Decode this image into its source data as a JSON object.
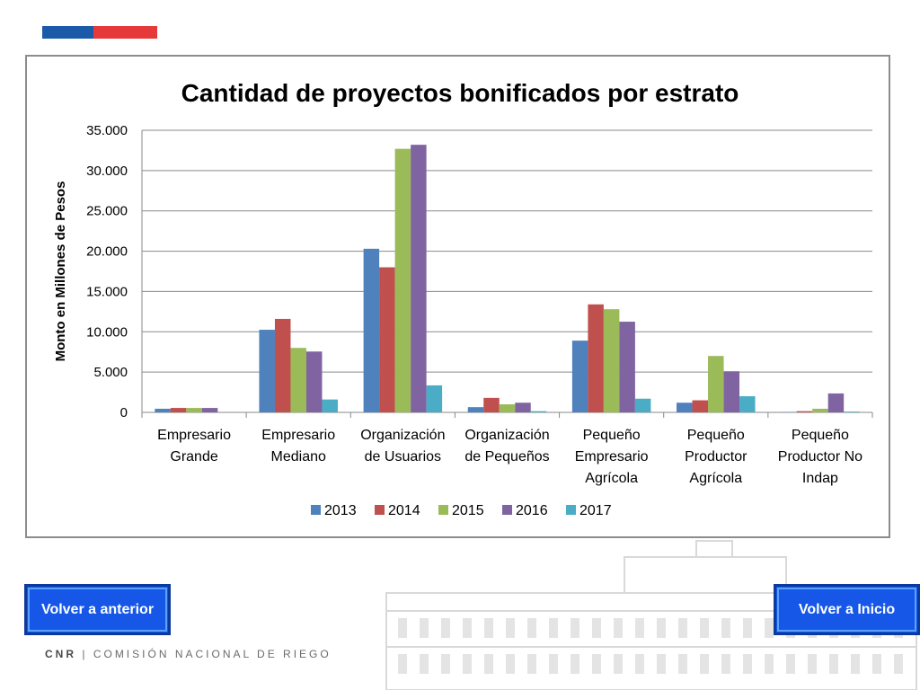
{
  "colors": {
    "flag_blue": "#1a5aa8",
    "flag_red": "#e63a3a",
    "button_bg": "#1657e8",
    "button_border": "#0b3a9c"
  },
  "buttons": {
    "back_label": "Volver a anterior",
    "home_label": "Volver a Inicio"
  },
  "footer": {
    "org_abbr": "CNR",
    "separator": "|",
    "org_name": "COMISIÓN NACIONAL DE RIEGO"
  },
  "chart_data": {
    "type": "bar",
    "title": "Cantidad de proyectos bonificados por estrato",
    "xlabel": "",
    "ylabel": "Monto en Millones de Pesos",
    "ylim": [
      0,
      35000
    ],
    "yticks": [
      "0",
      "5.000",
      "10.000",
      "15.000",
      "20.000",
      "25.000",
      "30.000",
      "35.000"
    ],
    "grid": true,
    "legend_position": "bottom",
    "categories": [
      [
        "Empresario",
        "Grande"
      ],
      [
        "Empresario",
        "Mediano"
      ],
      [
        "Organización",
        "de Usuarios"
      ],
      [
        "Organización",
        "de Pequeños"
      ],
      [
        "Pequeño",
        "Empresario",
        "Agrícola"
      ],
      [
        "Pequeño",
        "Productor",
        "Agrícola"
      ],
      [
        "Pequeño",
        "Productor No",
        "Indap"
      ]
    ],
    "series": [
      {
        "name": "2013",
        "color": "#4f81bd",
        "values": [
          450,
          10250,
          20300,
          650,
          8900,
          1200,
          50
        ]
      },
      {
        "name": "2014",
        "color": "#c0504d",
        "values": [
          550,
          11600,
          18000,
          1800,
          13400,
          1500,
          150
        ]
      },
      {
        "name": "2015",
        "color": "#9bbb59",
        "values": [
          550,
          8000,
          32700,
          1000,
          12800,
          7000,
          450
        ]
      },
      {
        "name": "2016",
        "color": "#8064a2",
        "values": [
          550,
          7550,
          33200,
          1200,
          11250,
          5100,
          2350
        ]
      },
      {
        "name": "2017",
        "color": "#4bacc6",
        "values": [
          0,
          1600,
          3350,
          150,
          1700,
          2000,
          100
        ]
      }
    ]
  }
}
